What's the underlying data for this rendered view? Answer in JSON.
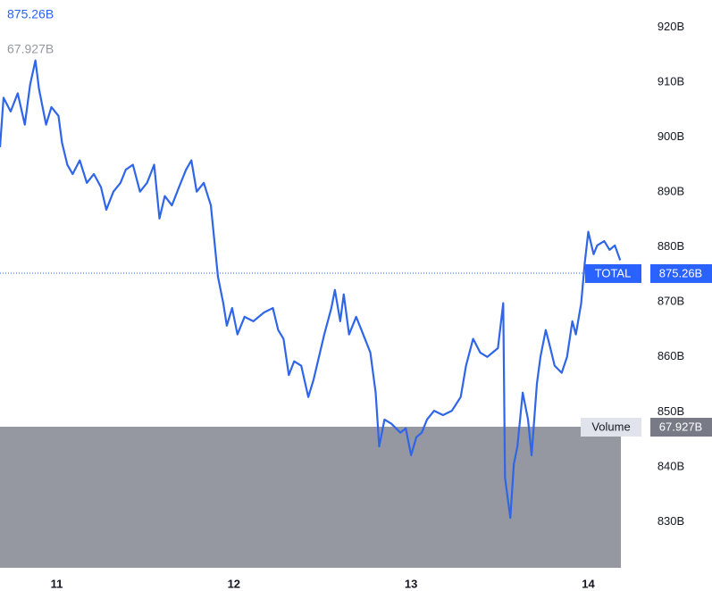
{
  "chart_data": {
    "type": "line",
    "x": [
      10.68,
      10.7,
      10.74,
      10.78,
      10.82,
      10.85,
      10.88,
      10.9,
      10.94,
      10.97,
      11.01,
      11.03,
      11.06,
      11.09,
      11.13,
      11.17,
      11.21,
      11.25,
      11.28,
      11.32,
      11.36,
      11.39,
      11.43,
      11.47,
      11.51,
      11.55,
      11.58,
      11.61,
      11.65,
      11.69,
      11.73,
      11.76,
      11.79,
      11.83,
      11.87,
      11.89,
      11.91,
      11.94,
      11.96,
      11.99,
      12.02,
      12.06,
      12.11,
      12.17,
      12.22,
      12.25,
      12.28,
      12.31,
      12.34,
      12.38,
      12.42,
      12.45,
      12.48,
      12.51,
      12.55,
      12.57,
      12.6,
      12.62,
      12.65,
      12.69,
      12.72,
      12.77,
      12.8,
      12.82,
      12.85,
      12.89,
      12.94,
      12.97,
      13.0,
      13.03,
      13.06,
      13.09,
      13.13,
      13.18,
      13.23,
      13.28,
      13.31,
      13.35,
      13.39,
      13.43,
      13.46,
      13.49,
      13.52,
      13.53,
      13.56,
      13.58,
      13.6,
      13.63,
      13.66,
      13.68,
      13.71,
      13.73,
      13.76,
      13.78,
      13.81,
      13.85,
      13.88,
      13.91,
      13.93,
      13.96,
      13.98,
      14.0,
      14.03,
      14.05,
      14.09,
      14.12,
      14.15,
      14.18
    ],
    "series": [
      {
        "name": "TOTAL",
        "color": "#2f66e8",
        "values": [
          898.2,
          907.2,
          904.7,
          908.0,
          902.3,
          909.6,
          914.0,
          908.8,
          902.3,
          905.5,
          903.9,
          899.0,
          895.0,
          893.3,
          895.8,
          891.7,
          893.3,
          890.9,
          886.8,
          890.1,
          891.7,
          894.1,
          895.0,
          890.1,
          891.7,
          895.0,
          885.2,
          889.3,
          887.6,
          890.9,
          894.1,
          895.8,
          890.1,
          891.7,
          887.6,
          881.1,
          874.6,
          869.8,
          865.7,
          868.9,
          864.1,
          867.3,
          866.5,
          868.1,
          868.9,
          864.9,
          863.3,
          856.7,
          859.2,
          858.4,
          852.7,
          855.9,
          860.0,
          864.1,
          868.9,
          872.2,
          866.5,
          871.4,
          864.1,
          867.3,
          864.9,
          860.8,
          853.5,
          843.7,
          848.6,
          847.8,
          846.2,
          847.0,
          842.1,
          845.4,
          846.2,
          848.6,
          850.2,
          849.4,
          850.2,
          852.7,
          858.4,
          863.3,
          860.8,
          860.0,
          860.8,
          861.6,
          869.8,
          838.0,
          830.7,
          840.5,
          843.7,
          853.5,
          848.6,
          842.1,
          855.1,
          860.0,
          864.9,
          862.4,
          858.4,
          857.1,
          860.0,
          866.5,
          864.1,
          869.8,
          877.1,
          882.8,
          878.7,
          880.3,
          881.1,
          879.5,
          880.3,
          877.6
        ],
        "last_value": 875.26,
        "last_label": "875.26B"
      }
    ],
    "volume": {
      "name": "Volume",
      "value": 67.927,
      "label": "67.927B",
      "color": "#9598a1"
    },
    "xlim": [
      10.68,
      14.31
    ],
    "ylim": [
      821.6,
      925.0
    ],
    "xticks": [
      11,
      12,
      13,
      14
    ],
    "yticks": [
      {
        "value": 920,
        "label": "920B"
      },
      {
        "value": 910,
        "label": "910B"
      },
      {
        "value": 900,
        "label": "900B"
      },
      {
        "value": 890,
        "label": "890B"
      },
      {
        "value": 880,
        "label": "880B"
      },
      {
        "value": 870,
        "label": "870B"
      },
      {
        "value": 860,
        "label": "860B"
      },
      {
        "value": 850,
        "label": "850B"
      },
      {
        "value": 840,
        "label": "840B"
      },
      {
        "value": 830,
        "label": "830B"
      }
    ]
  }
}
